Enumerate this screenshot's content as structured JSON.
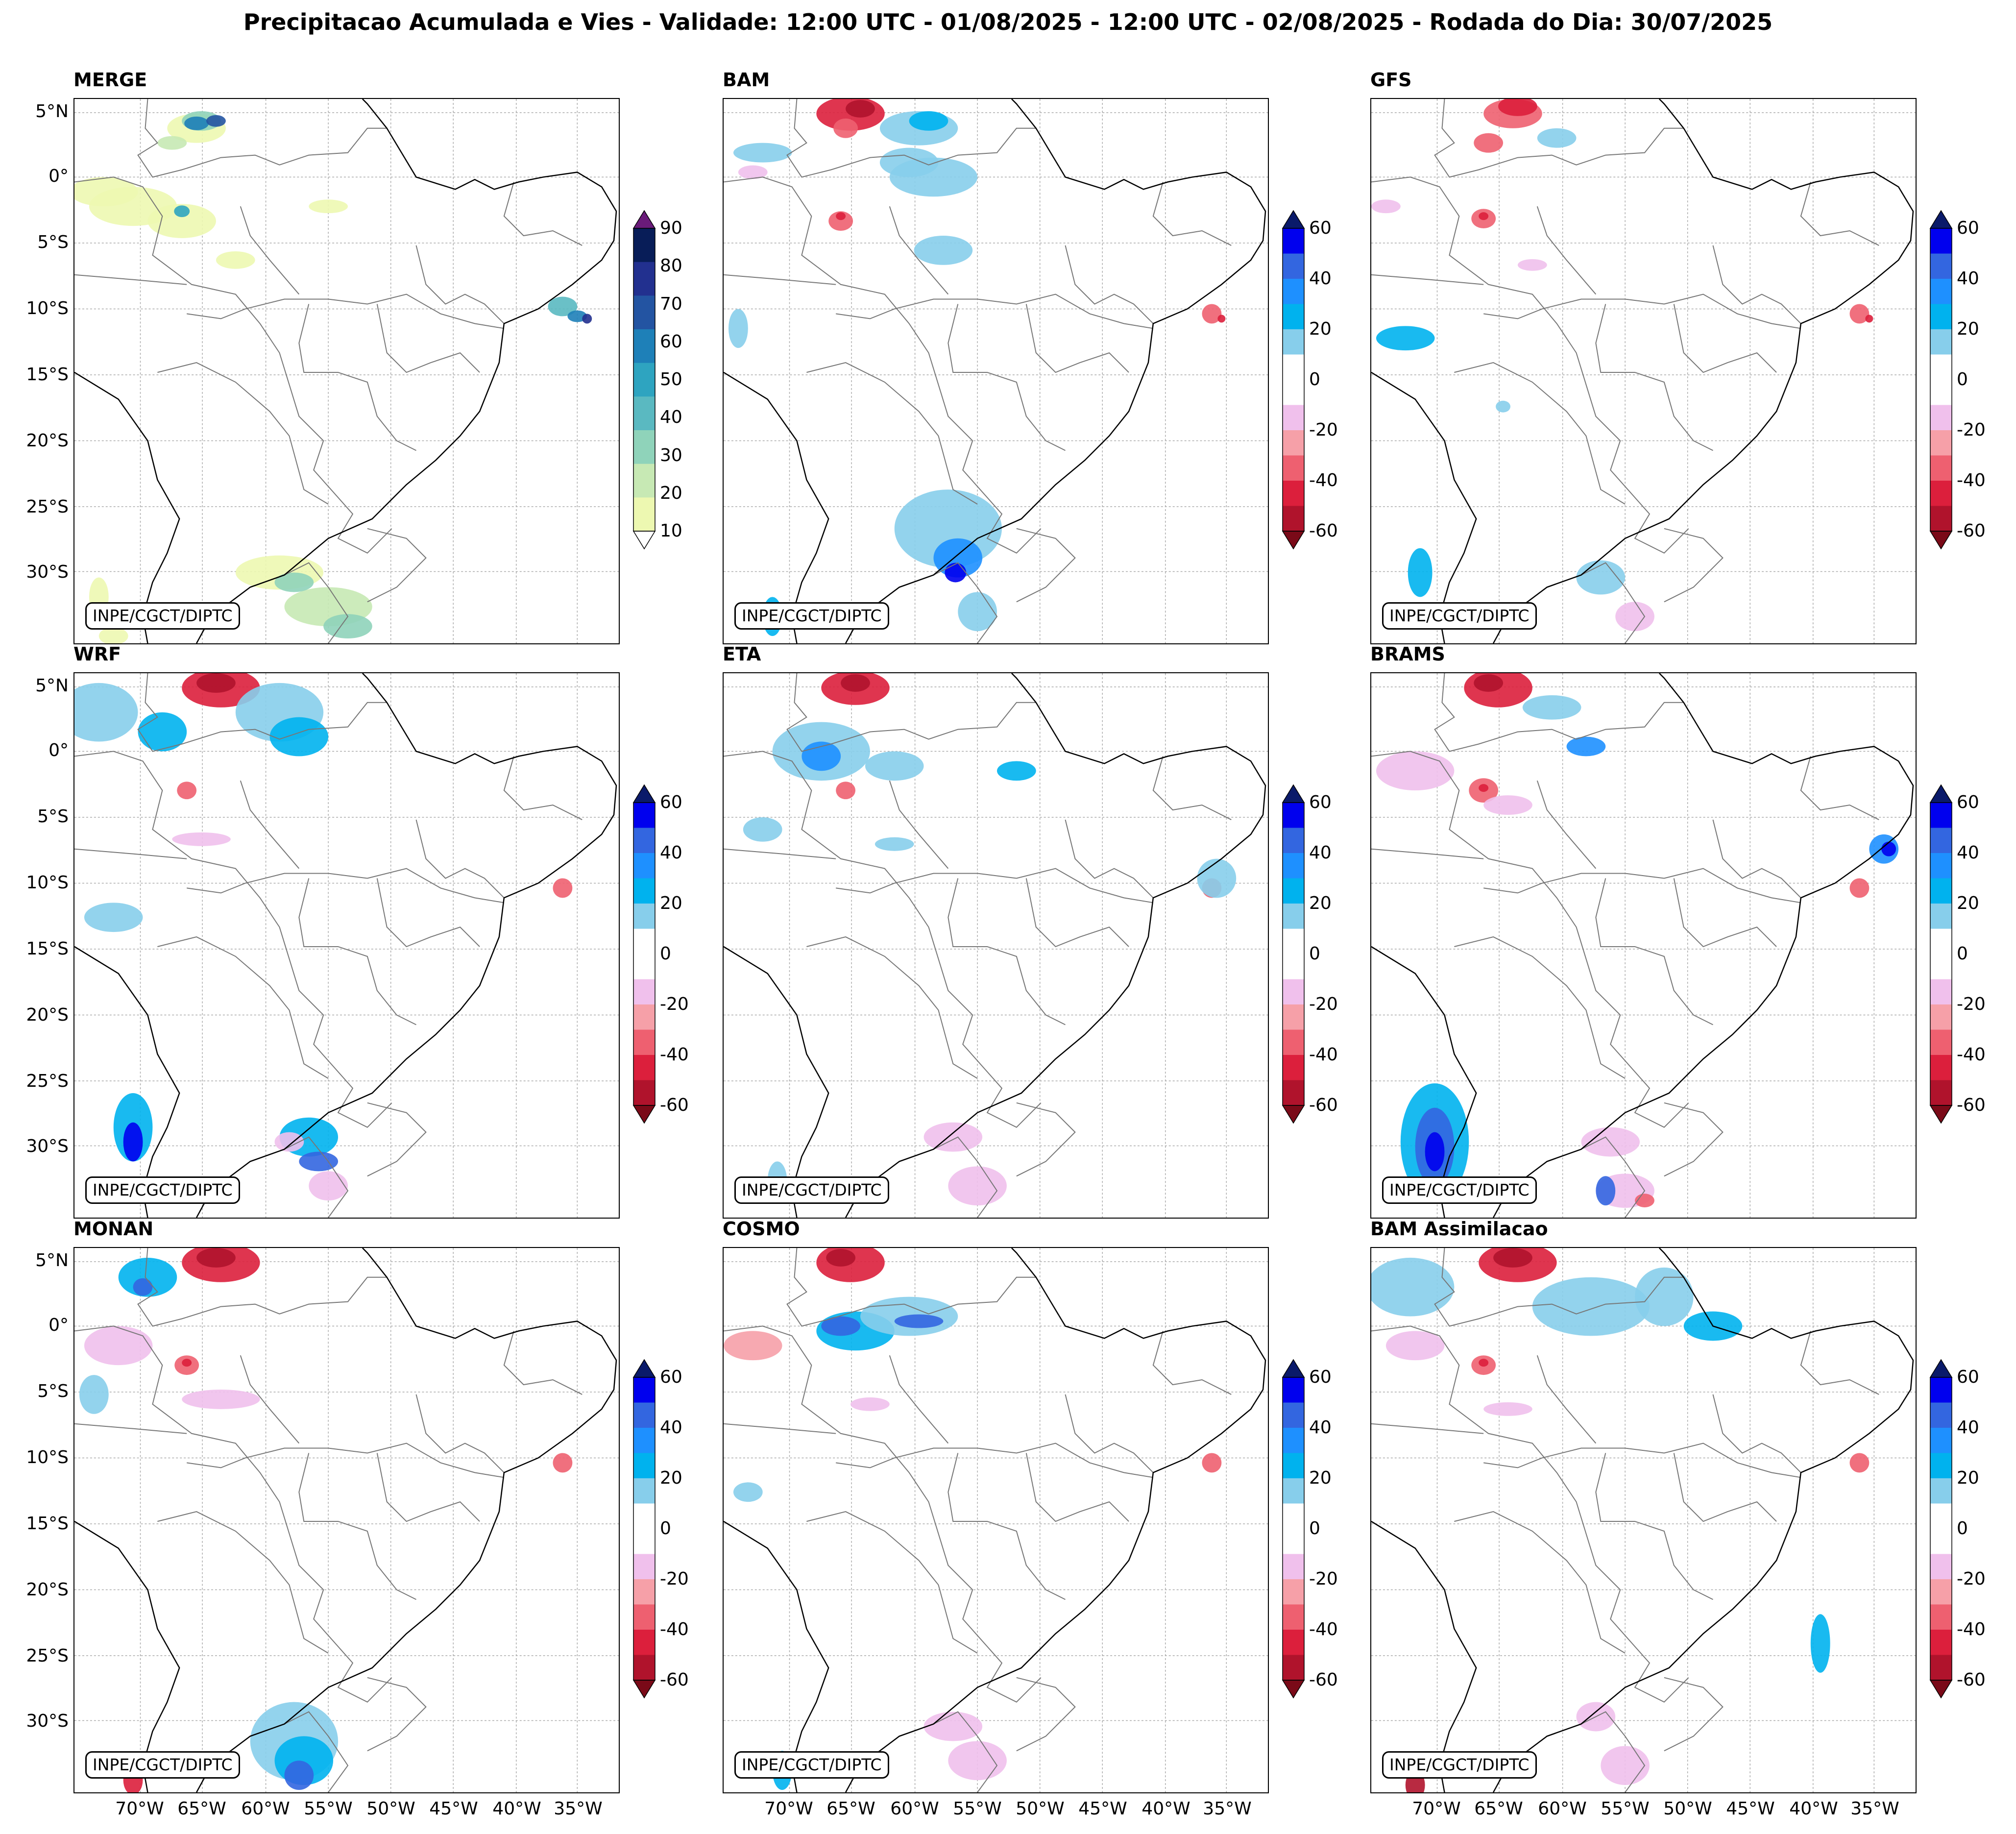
{
  "title": "Precipitacao Acumulada e Vies - Validade: 12:00 UTC - 01/08/2025 - 12:00 UTC - 02/08/2025 - Rodada do Dia: 30/07/2025",
  "credit": "INPE/CGCT/DIPTC",
  "lat_ticks": [
    "5°N",
    "0°",
    "5°S",
    "10°S",
    "15°S",
    "20°S",
    "25°S",
    "30°S"
  ],
  "lon_ticks": [
    "70°W",
    "65°W",
    "60°W",
    "55°W",
    "50°W",
    "45°W",
    "40°W",
    "35°W"
  ],
  "panels": [
    {
      "name": "MERGE",
      "type": "precipitation"
    },
    {
      "name": "BAM",
      "type": "bias"
    },
    {
      "name": "GFS",
      "type": "bias"
    },
    {
      "name": "WRF",
      "type": "bias"
    },
    {
      "name": "ETA",
      "type": "bias"
    },
    {
      "name": "BRAMS",
      "type": "bias"
    },
    {
      "name": "MONAN",
      "type": "bias"
    },
    {
      "name": "COSMO",
      "type": "bias"
    },
    {
      "name": "BAM Assimilacao",
      "type": "bias"
    }
  ],
  "precip_colorbar": {
    "labels": [
      "90",
      "80",
      "70",
      "60",
      "50",
      "40",
      "30",
      "20",
      "10"
    ],
    "colors": [
      "#081d58",
      "#22308f",
      "#2354a2",
      "#1e80b8",
      "#2ea4c0",
      "#5ab9c1",
      "#8fd3ba",
      "#c7e9b4",
      "#edf8b1"
    ],
    "extend_color_max": "#6a1b7a"
  },
  "bias_colorbar": {
    "labels": [
      "60",
      "40",
      "20",
      "0",
      "-20",
      "-40",
      "-60"
    ],
    "colors": [
      "#0000ee",
      "#3366e0",
      "#1e90ff",
      "#00b2ee",
      "#87ceeb",
      "#ffffff",
      "#ffffff",
      "#f0c0ec",
      "#f6a0a8",
      "#ee6070",
      "#dc1f3c",
      "#b0132c"
    ],
    "extend_color_max": "#0a1a6a",
    "extend_color_min": "#7a0a18"
  }
}
